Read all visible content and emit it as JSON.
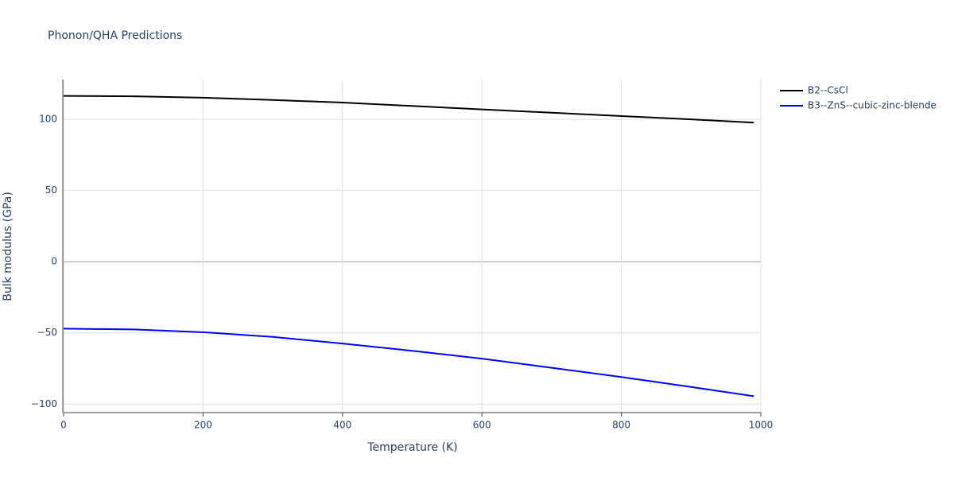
{
  "chart_data": {
    "type": "line",
    "title": "Phonon/QHA Predictions",
    "x_label": "Temperature (K)",
    "y_label": "Bulk modulus (GPa)",
    "x": [
      0,
      100,
      200,
      300,
      400,
      500,
      600,
      700,
      800,
      900,
      990
    ],
    "series": [
      {
        "name": "B2--CsCl",
        "color": "#000000",
        "values": [
          116.5,
          116.2,
          115.2,
          113.6,
          111.8,
          109.4,
          107,
          104.7,
          102.3,
          100,
          97.7
        ]
      },
      {
        "name": "B3--ZnS--cubic-zinc-blende",
        "color": "#0000ff",
        "values": [
          -47,
          -47.6,
          -49.5,
          -52.8,
          -57.5,
          -62.6,
          -68.1,
          -74.5,
          -81,
          -88,
          -94.5
        ]
      }
    ],
    "xlim": [
      0,
      1000
    ],
    "xticks": [
      0,
      200,
      400,
      600,
      800,
      1000
    ],
    "ylim": [
      -106,
      128
    ],
    "yticks": [
      {
        "value": -100,
        "label": "−100"
      },
      {
        "value": -50,
        "label": "−50"
      },
      0,
      50,
      100
    ],
    "grid": true,
    "legend": "top-right"
  }
}
